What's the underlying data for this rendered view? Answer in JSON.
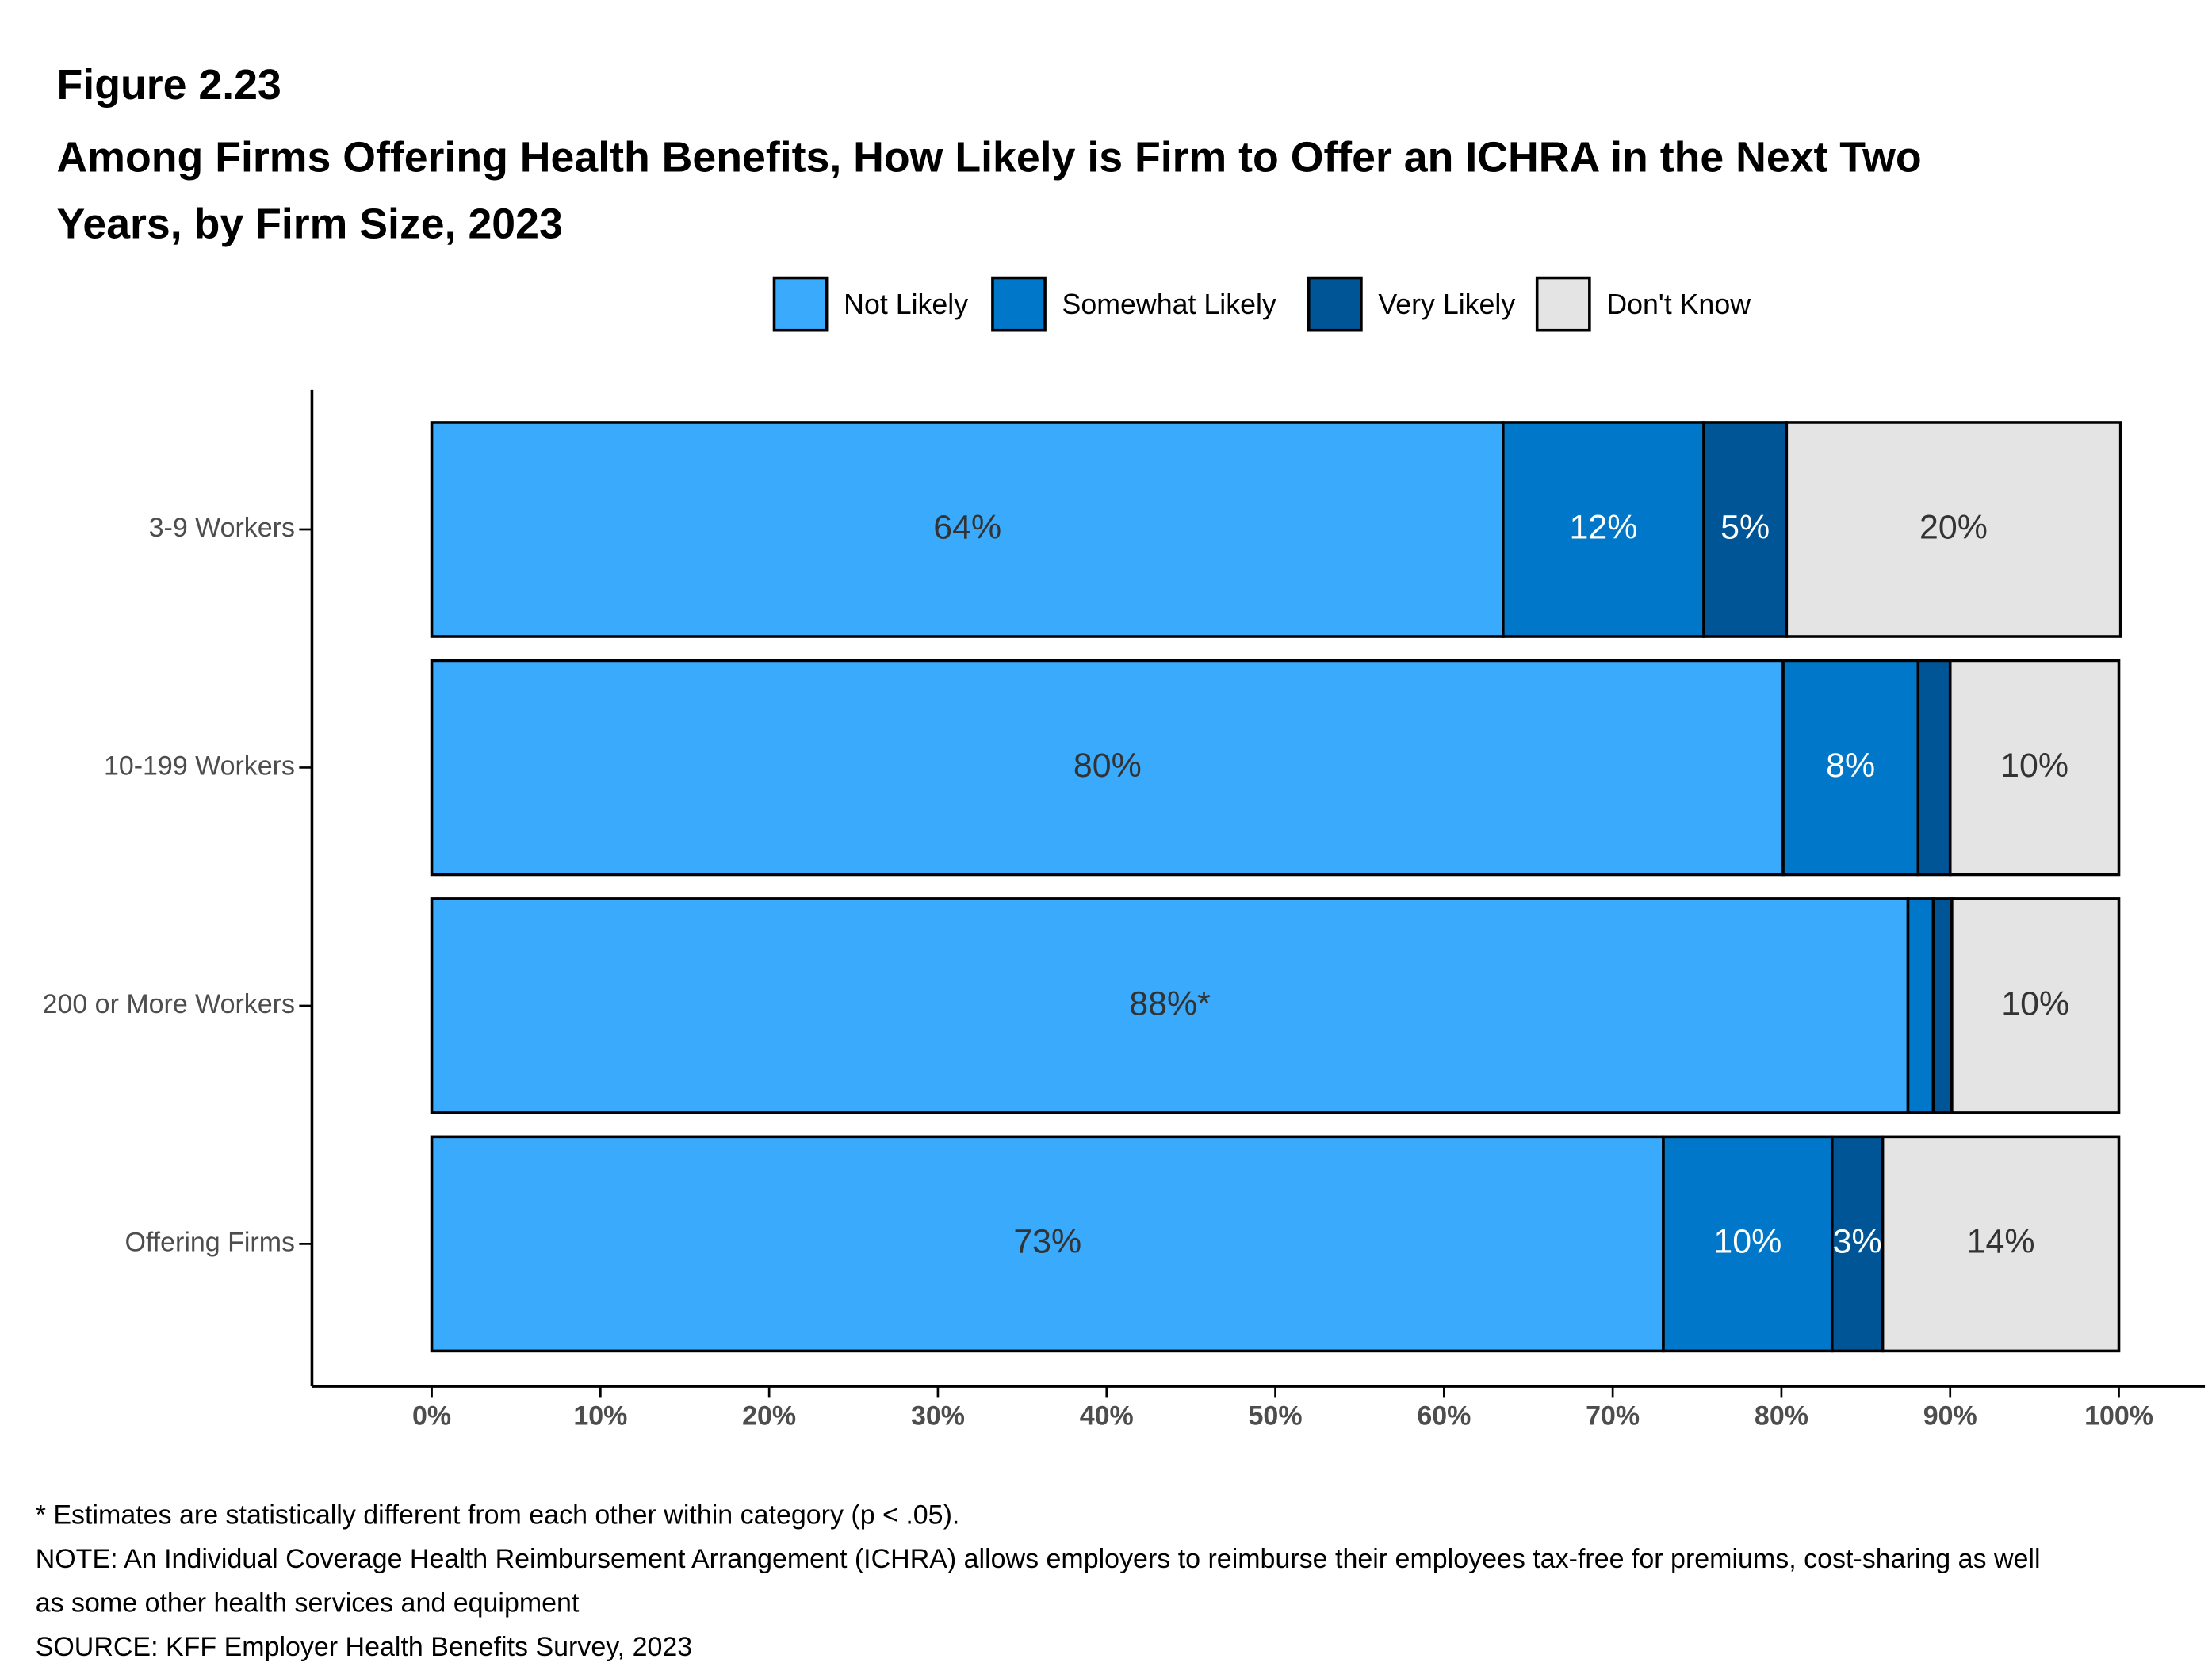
{
  "chart_data": {
    "type": "stacked_barh",
    "figure_label": "Figure 2.23",
    "title": "Among Firms Offering Health Benefits, How Likely is Firm to Offer an ICHRA in the Next Two Years, by Firm Size, 2023",
    "categories": [
      "3-9 Workers",
      "10-199 Workers",
      "200 or More Workers",
      "Offering Firms"
    ],
    "series": [
      {
        "name": "Not Likely",
        "color": "#3AAAFC",
        "label_color": "#333333",
        "values": [
          63.5,
          80.1,
          87.5,
          73
        ],
        "value_labels": [
          "64%",
          "80%",
          "88%*",
          "73%"
        ]
      },
      {
        "name": "Somewhat Likely",
        "color": "#0077C8",
        "label_color": "#ffffff",
        "values": [
          11.9,
          8,
          1.5,
          10
        ],
        "value_labels": [
          "12%",
          "8%",
          null,
          "10%"
        ]
      },
      {
        "name": "Very Likely",
        "color": "#005596",
        "label_color": "#ffffff",
        "values": [
          4.9,
          1.9,
          1.1,
          3
        ],
        "value_labels": [
          "5%",
          null,
          null,
          "3%"
        ]
      },
      {
        "name": "Don't Know",
        "color": "#E4E4E4",
        "label_color": "#333333",
        "values": [
          19.8,
          10,
          9.9,
          14
        ],
        "value_labels": [
          "20%",
          "10%",
          "10%",
          "14%"
        ]
      }
    ],
    "xlim": [
      -7.1,
      105.1
    ],
    "xticks": [
      {
        "value": 0,
        "label": "0%"
      },
      {
        "value": 10,
        "label": "10%"
      },
      {
        "value": 20,
        "label": "20%"
      },
      {
        "value": 30,
        "label": "30%"
      },
      {
        "value": 40,
        "label": "40%"
      },
      {
        "value": 50,
        "label": "50%"
      },
      {
        "value": 60,
        "label": "60%"
      },
      {
        "value": 70,
        "label": "70%"
      },
      {
        "value": 80,
        "label": "80%"
      },
      {
        "value": 90,
        "label": "90%"
      },
      {
        "value": 100,
        "label": "100%"
      }
    ],
    "legend_position": "top",
    "notes": [
      "* Estimates are statistically different from each other within category (p < .05).",
      "NOTE: An Individual Coverage Health Reimbursement Arrangement (ICHRA) allows employers to reimburse their employees tax-free for premiums, cost-sharing as well as some other health services and equipment",
      "SOURCE: KFF Employer Health Benefits Survey, 2023"
    ]
  }
}
